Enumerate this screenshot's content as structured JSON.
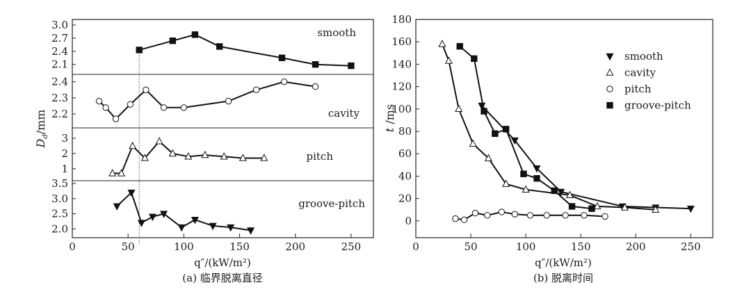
{
  "chart_data": [
    {
      "type": "line",
      "layout": "stacked",
      "caption": "(a) 临界脱离直径",
      "xlabel": "q″/(kW/m²)",
      "ylabel": "D_d /mm",
      "xlim": [
        0,
        270
      ],
      "x_ticks": [
        "0",
        "50",
        "100",
        "150",
        "200",
        "250"
      ],
      "guide_x": 60,
      "panels": [
        {
          "name": "smooth",
          "label": "smooth",
          "marker": "square",
          "ylim": [
            2.0,
            3.0
          ],
          "y_ticks": [
            "2.1",
            "2.4",
            "2.7",
            "3.0"
          ],
          "x": [
            60,
            90,
            110,
            132,
            188,
            218,
            250
          ],
          "y": [
            2.43,
            2.64,
            2.78,
            2.51,
            2.25,
            2.1,
            2.07
          ]
        },
        {
          "name": "cavity",
          "label": "cavity",
          "marker": "circle",
          "ylim": [
            2.14,
            2.42
          ],
          "y_ticks": [
            "2.2",
            "2.3",
            "2.4"
          ],
          "x": [
            24,
            30,
            39,
            52,
            66,
            82,
            100,
            140,
            165,
            190,
            218
          ],
          "y": [
            2.28,
            2.24,
            2.17,
            2.26,
            2.35,
            2.24,
            2.24,
            2.28,
            2.35,
            2.4,
            2.37
          ]
        },
        {
          "name": "pitch",
          "label": "pitch",
          "marker": "triangle-up",
          "ylim": [
            0.4,
            3.5
          ],
          "y_ticks": [
            "1",
            "2",
            "3"
          ],
          "x": [
            36,
            44,
            54,
            65,
            78,
            90,
            104,
            119,
            136,
            153,
            172
          ],
          "y": [
            0.7,
            0.7,
            2.5,
            1.7,
            2.8,
            2.0,
            1.8,
            1.9,
            1.8,
            1.7,
            1.7
          ]
        },
        {
          "name": "groove-pitch",
          "label": "groove-pitch",
          "marker": "triangle-down",
          "ylim": [
            1.8,
            3.5
          ],
          "y_ticks": [
            "3.5",
            "3.0",
            "2.5",
            "2.0"
          ],
          "x": [
            40,
            53,
            62,
            72,
            82,
            98,
            110,
            126,
            142,
            160
          ],
          "y": [
            2.75,
            3.2,
            2.2,
            2.4,
            2.5,
            2.05,
            2.3,
            2.1,
            2.05,
            1.95
          ]
        }
      ]
    },
    {
      "type": "line",
      "caption": "(b) 脱离时间",
      "xlabel": "q″/(kW/m²)",
      "ylabel": "t /ms",
      "xlim": [
        0,
        270
      ],
      "ylim": [
        -15,
        180
      ],
      "x_ticks": [
        "0",
        "50",
        "100",
        "150",
        "200",
        "250"
      ],
      "y_ticks": [
        "0",
        "20",
        "40",
        "60",
        "80",
        "100",
        "120",
        "140",
        "160",
        "180"
      ],
      "legend_position": "top-right",
      "series": [
        {
          "name": "smooth",
          "marker": "triangle-down",
          "x": [
            60,
            90,
            110,
            132,
            188,
            218,
            250
          ],
          "y": [
            103,
            72,
            47,
            26,
            13,
            12,
            11
          ]
        },
        {
          "name": "cavity",
          "marker": "triangle-up",
          "x": [
            24,
            30,
            39,
            52,
            66,
            82,
            100,
            140,
            165,
            190,
            218
          ],
          "y": [
            158,
            143,
            100,
            69,
            56,
            33,
            28,
            23,
            13,
            12,
            10
          ]
        },
        {
          "name": "pitch",
          "marker": "circle",
          "x": [
            36,
            44,
            54,
            65,
            78,
            90,
            104,
            119,
            136,
            153,
            172
          ],
          "y": [
            2,
            1,
            7,
            5,
            8,
            6,
            5,
            5,
            5,
            5,
            4
          ]
        },
        {
          "name": "groove-pitch",
          "marker": "square",
          "x": [
            40,
            53,
            62,
            72,
            82,
            98,
            110,
            126,
            142,
            160
          ],
          "y": [
            156,
            145,
            98,
            78,
            82,
            42,
            38,
            27,
            13,
            11
          ]
        }
      ]
    }
  ]
}
